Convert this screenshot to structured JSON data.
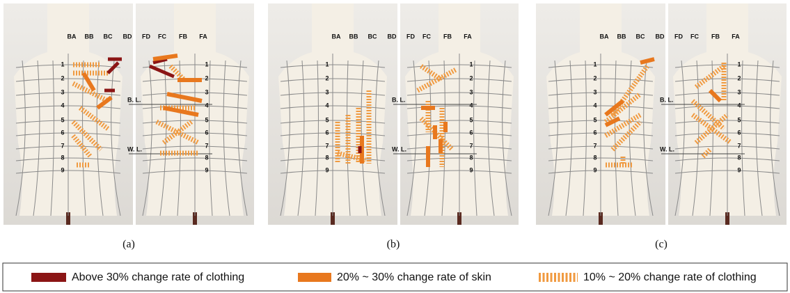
{
  "panels": [
    {
      "caption": "(a)",
      "back_columns": [
        "BA",
        "BB",
        "BC",
        "BD"
      ],
      "front_columns": [
        "FD",
        "FC",
        "FB",
        "FA"
      ],
      "back_rows": [
        "1",
        "2",
        "3",
        "4",
        "5",
        "6",
        "7",
        "8",
        "9"
      ],
      "front_rows": [
        "1",
        "2",
        "3",
        "4",
        "5",
        "6",
        "7",
        "8",
        "9"
      ],
      "bust_line": "B. L.",
      "waist_line": "W. L."
    },
    {
      "caption": "(b)",
      "back_columns": [
        "BA",
        "BB",
        "BC",
        "BD"
      ],
      "front_columns": [
        "FD",
        "FC",
        "FB",
        "FA"
      ],
      "back_rows": [
        "1",
        "2",
        "3",
        "4",
        "5",
        "6",
        "7",
        "8",
        "9"
      ],
      "front_rows": [
        "1",
        "2",
        "3",
        "4",
        "5",
        "6",
        "7",
        "8",
        "9"
      ],
      "bust_line": "B. L.",
      "waist_line": "W. L."
    },
    {
      "caption": "(c)",
      "back_columns": [
        "BA",
        "BB",
        "BC",
        "BD"
      ],
      "front_columns": [
        "FD",
        "FC",
        "FB",
        "FA"
      ],
      "back_rows": [
        "1",
        "2",
        "3",
        "4",
        "5",
        "6",
        "7",
        "8",
        "9"
      ],
      "front_rows": [
        "1",
        "2",
        "3",
        "4",
        "5",
        "6",
        "7",
        "8",
        "9"
      ],
      "bust_line": "B. L.",
      "waist_line": "W. L."
    }
  ],
  "legend": [
    "Above 30% change rate of clothing",
    "20% ~ 30% change rate of skin",
    "10% ~ 20% change rate of clothing"
  ]
}
